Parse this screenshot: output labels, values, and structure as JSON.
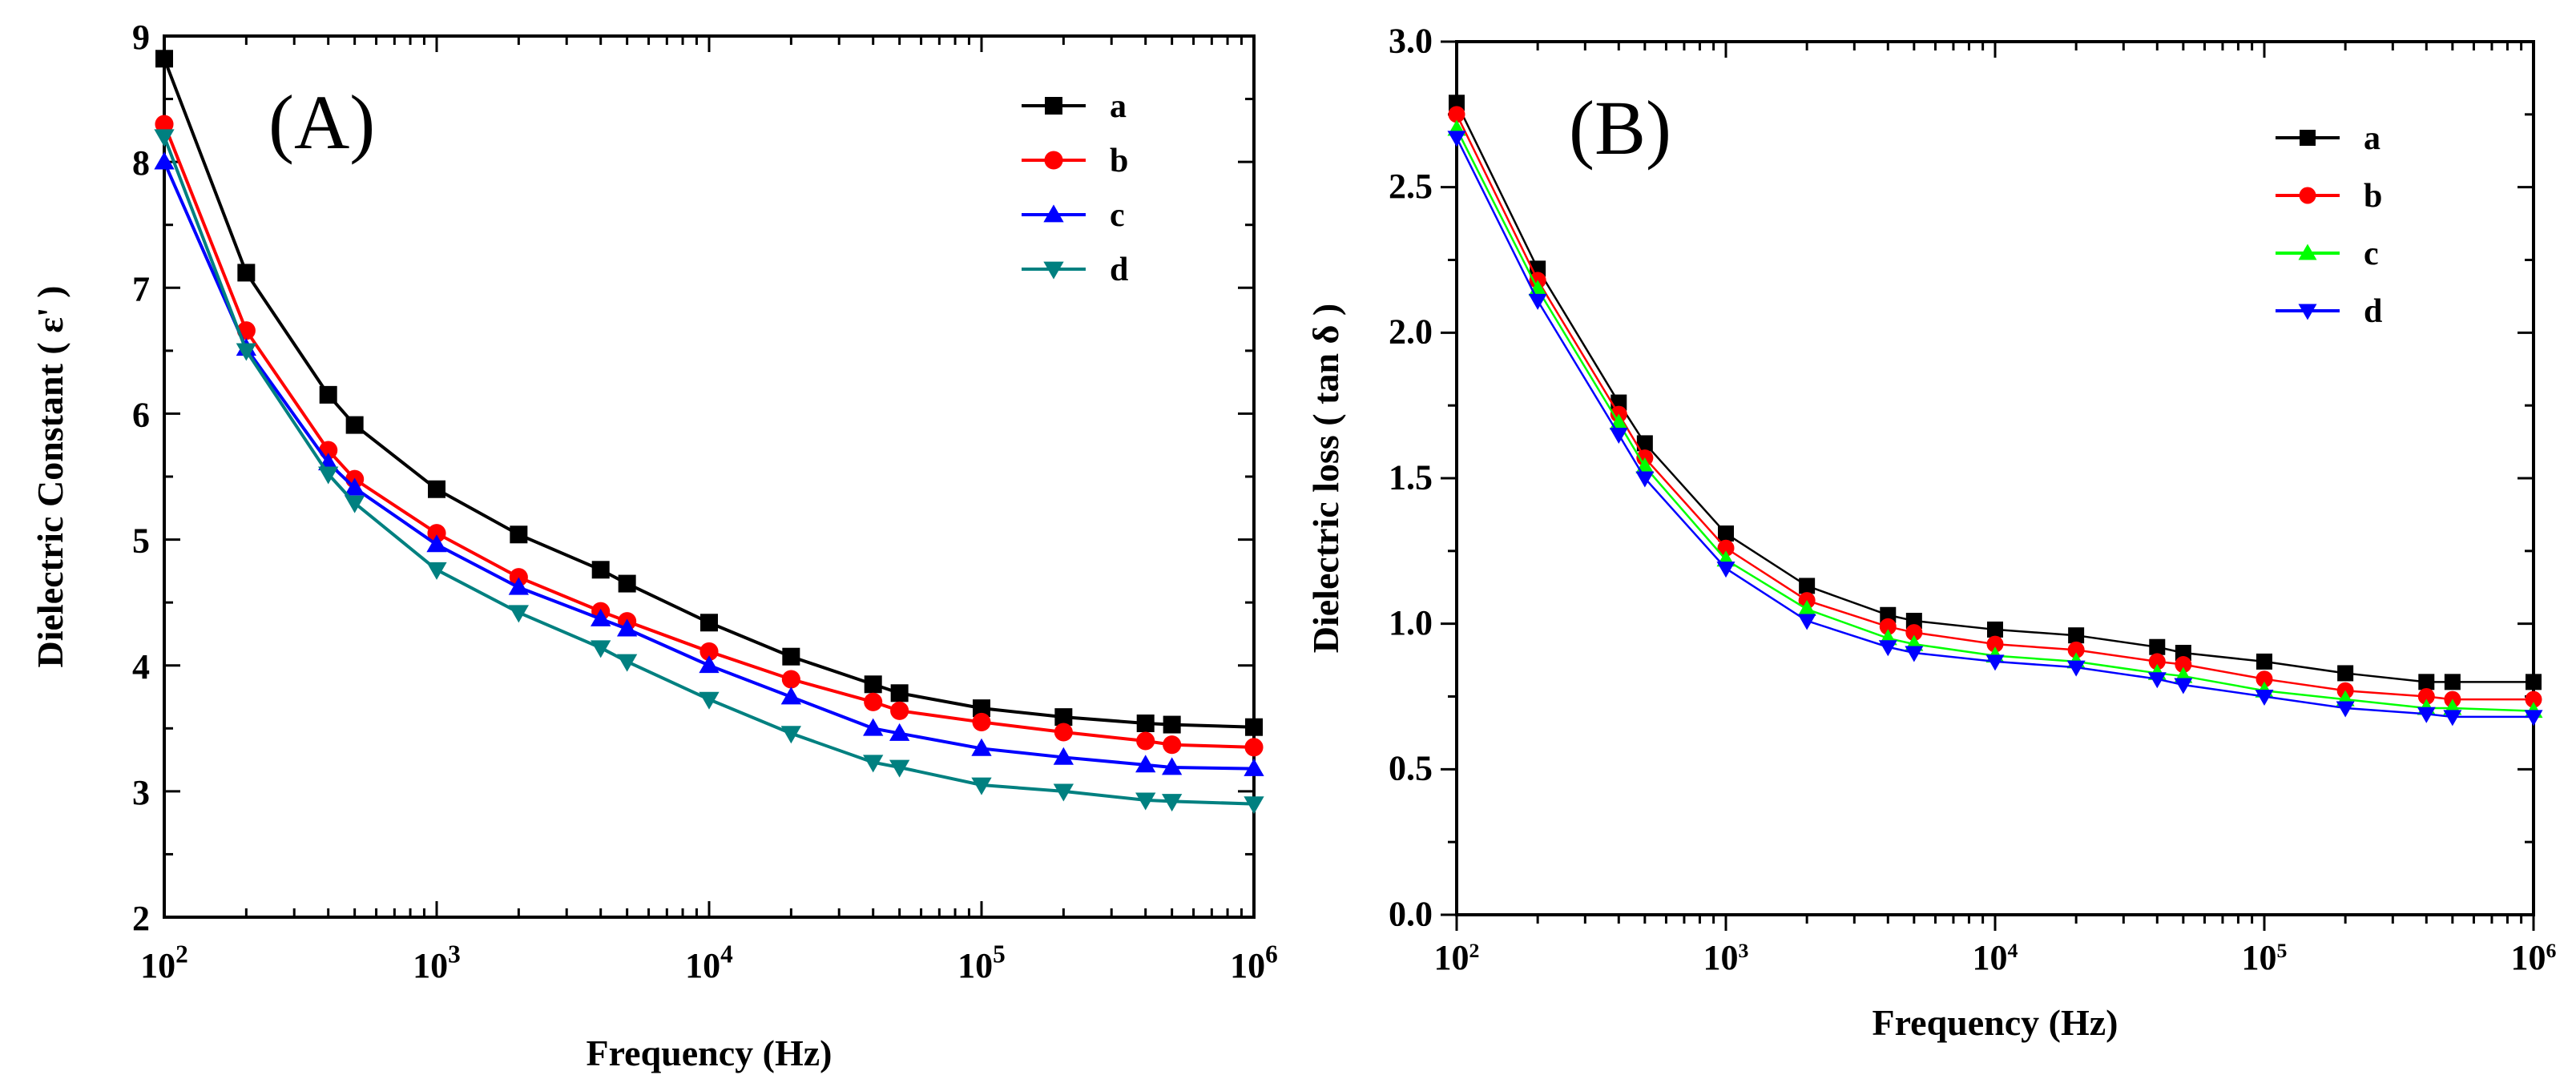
{
  "chart_data": [
    {
      "type": "line",
      "panel_label": "(A)",
      "xlabel": "Frequency (Hz)",
      "ylabel": "Dielectric Constant ( ε' )",
      "xscale": "log",
      "xlim": [
        100,
        1000000
      ],
      "ylim": [
        2,
        9
      ],
      "xticks": [
        {
          "base": "10",
          "exp": "2"
        },
        {
          "base": "10",
          "exp": "3"
        },
        {
          "base": "10",
          "exp": "4"
        },
        {
          "base": "10",
          "exp": "5"
        },
        {
          "base": "10",
          "exp": "6"
        }
      ],
      "yticks": [
        "2",
        "3",
        "4",
        "5",
        "6",
        "7",
        "8",
        "9"
      ],
      "legend_position": "top-right",
      "x": [
        100,
        200,
        400,
        500,
        1000,
        2000,
        4000,
        5000,
        10000,
        20000,
        40000,
        50000,
        100000,
        200000,
        400000,
        500000,
        1000000
      ],
      "series": [
        {
          "name": "a",
          "color": "#000000",
          "marker": "square",
          "values": [
            8.82,
            7.12,
            6.15,
            5.91,
            5.4,
            5.04,
            4.76,
            4.65,
            4.34,
            4.07,
            3.85,
            3.78,
            3.66,
            3.59,
            3.54,
            3.53,
            3.51
          ]
        },
        {
          "name": "b",
          "color": "#ff0000",
          "marker": "circle",
          "values": [
            8.3,
            6.66,
            5.71,
            5.48,
            5.05,
            4.7,
            4.43,
            4.35,
            4.11,
            3.89,
            3.71,
            3.64,
            3.55,
            3.47,
            3.4,
            3.37,
            3.35
          ]
        },
        {
          "name": "c",
          "color": "#0000ff",
          "marker": "triangle-up",
          "values": [
            8.0,
            6.52,
            5.61,
            5.41,
            4.96,
            4.62,
            4.37,
            4.29,
            4.0,
            3.75,
            3.5,
            3.46,
            3.34,
            3.27,
            3.21,
            3.19,
            3.18
          ]
        },
        {
          "name": "d",
          "color": "#008080",
          "marker": "triangle-down",
          "values": [
            8.2,
            6.5,
            5.52,
            5.29,
            4.76,
            4.42,
            4.14,
            4.03,
            3.73,
            3.46,
            3.23,
            3.19,
            3.05,
            3.0,
            2.93,
            2.92,
            2.9
          ]
        }
      ]
    },
    {
      "type": "line",
      "panel_label": "(B)",
      "xlabel": "Frequency (Hz)",
      "ylabel": "Dielectric loss ( tan δ )",
      "xscale": "log",
      "xlim": [
        100,
        1000000
      ],
      "ylim": [
        0.0,
        3.0
      ],
      "xticks": [
        {
          "base": "10",
          "exp": "2"
        },
        {
          "base": "10",
          "exp": "3"
        },
        {
          "base": "10",
          "exp": "4"
        },
        {
          "base": "10",
          "exp": "5"
        },
        {
          "base": "10",
          "exp": "6"
        }
      ],
      "yticks": [
        "0.0",
        "0.5",
        "1.0",
        "1.5",
        "2.0",
        "2.5",
        "3.0"
      ],
      "legend_position": "top-right",
      "x": [
        100,
        200,
        400,
        500,
        1000,
        2000,
        4000,
        5000,
        10000,
        20000,
        40000,
        50000,
        100000,
        200000,
        400000,
        500000,
        1000000
      ],
      "series": [
        {
          "name": "a",
          "color": "#000000",
          "marker": "square",
          "values": [
            2.79,
            2.22,
            1.76,
            1.62,
            1.31,
            1.13,
            1.03,
            1.01,
            0.98,
            0.96,
            0.92,
            0.9,
            0.87,
            0.83,
            0.8,
            0.8,
            0.8
          ]
        },
        {
          "name": "b",
          "color": "#ff0000",
          "marker": "circle",
          "values": [
            2.75,
            2.18,
            1.72,
            1.57,
            1.26,
            1.08,
            0.99,
            0.97,
            0.93,
            0.91,
            0.87,
            0.86,
            0.81,
            0.77,
            0.75,
            0.74,
            0.74
          ]
        },
        {
          "name": "c",
          "color": "#00ff00",
          "marker": "triangle-up",
          "values": [
            2.7,
            2.15,
            1.69,
            1.54,
            1.22,
            1.05,
            0.95,
            0.93,
            0.89,
            0.87,
            0.83,
            0.82,
            0.77,
            0.74,
            0.71,
            0.71,
            0.7
          ]
        },
        {
          "name": "d",
          "color": "#0000ff",
          "marker": "triangle-down",
          "values": [
            2.67,
            2.11,
            1.65,
            1.5,
            1.19,
            1.01,
            0.92,
            0.9,
            0.87,
            0.85,
            0.81,
            0.79,
            0.75,
            0.71,
            0.69,
            0.68,
            0.68
          ]
        }
      ]
    }
  ]
}
